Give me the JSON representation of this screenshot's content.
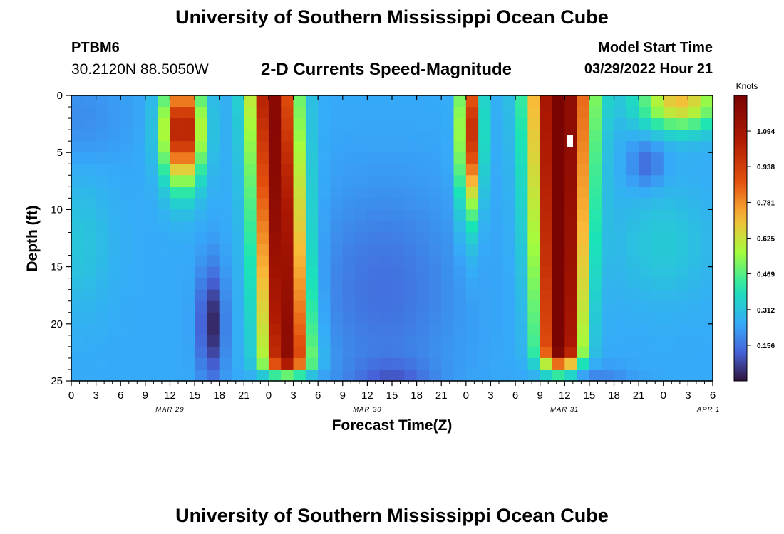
{
  "header": {
    "title": "University of Southern Mississippi Ocean Cube",
    "station": "PTBM6",
    "coords": "30.2120N  88.5050W",
    "subtitle": "2-D Currents Speed-Magnitude",
    "model_label": "Model Start Time",
    "model_time": "03/29/2022 Hour 21"
  },
  "footer": {
    "title": "University of Southern Mississippi Ocean Cube"
  },
  "chart_data": {
    "type": "heatmap",
    "title": "2-D Currents Speed-Magnitude",
    "xlabel": "Forecast Time(Z)",
    "ylabel": "Depth (ft)",
    "x_range_hours_from_mar29_00z": [
      0,
      78
    ],
    "ylim": [
      0,
      25
    ],
    "x_tick_labels": [
      "0",
      "3",
      "6",
      "9",
      "12",
      "15",
      "18",
      "21",
      "0",
      "3",
      "6",
      "9",
      "12",
      "15",
      "18",
      "21",
      "0",
      "3",
      "6",
      "9",
      "12",
      "15",
      "18",
      "21",
      "0",
      "3",
      "6"
    ],
    "y_tick_labels": [
      "0",
      "5",
      "10",
      "15",
      "20",
      "25"
    ],
    "date_labels": [
      {
        "label": "MAR 29",
        "hour": 12
      },
      {
        "label": "MAR 30",
        "hour": 36
      },
      {
        "label": "MAR 31",
        "hour": 60
      },
      {
        "label": "APR 1",
        "hour": 84
      }
    ],
    "colorbar": {
      "unit": "Knots",
      "min": 0.0,
      "max": 1.25,
      "tick_labels": [
        "0.156",
        "0.312",
        "0.469",
        "0.625",
        "0.781",
        "0.938",
        "1.094"
      ]
    },
    "features": [
      {
        "t": [
          0,
          9
        ],
        "depth": [
          0,
          25
        ],
        "approx_knots": 0.25
      },
      {
        "t": [
          11,
          16
        ],
        "depth": [
          0,
          9
        ],
        "approx_knots": 0.95
      },
      {
        "t": [
          16,
          19
        ],
        "depth": [
          14,
          25
        ],
        "approx_knots": 0.05
      },
      {
        "t": [
          21,
          29
        ],
        "depth": [
          0,
          23
        ],
        "approx_knots": 1.0
      },
      {
        "t": [
          29,
          47
        ],
        "depth": [
          0,
          25
        ],
        "approx_knots": 0.15
      },
      {
        "t": [
          48,
          50
        ],
        "depth": [
          0,
          12
        ],
        "approx_knots": 0.85
      },
      {
        "t": [
          55,
          64
        ],
        "depth": [
          0,
          24
        ],
        "approx_knots": 1.15
      },
      {
        "t": [
          67,
          78
        ],
        "depth": [
          0,
          4
        ],
        "approx_knots": 0.7
      },
      {
        "t": [
          67,
          78
        ],
        "depth": [
          4,
          25
        ],
        "approx_knots": 0.3
      }
    ]
  }
}
